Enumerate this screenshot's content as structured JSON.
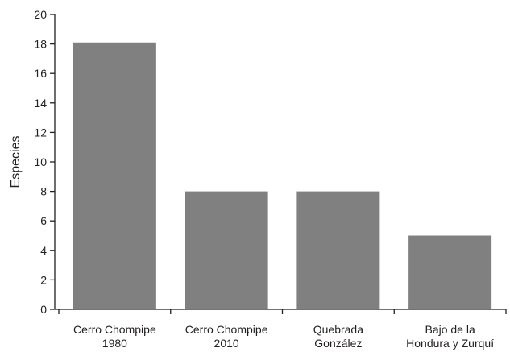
{
  "chart_data": {
    "type": "bar",
    "title": "",
    "xlabel": "",
    "ylabel": "Especies",
    "ylim": [
      0,
      20
    ],
    "yticks": [
      0,
      2,
      4,
      6,
      8,
      10,
      12,
      14,
      16,
      18,
      20
    ],
    "categories": [
      [
        "Cerro Chompipe",
        "1980"
      ],
      [
        "Cerro Chompipe",
        "2010"
      ],
      [
        "Quebrada",
        "González"
      ],
      [
        "Bajo de la",
        "Hondura y Zurquí"
      ]
    ],
    "values": [
      18.1,
      8,
      8,
      5
    ],
    "grid": false,
    "legend": "none",
    "colors": {
      "bar": "#808080",
      "axis": "#231f20",
      "text": "#231f20"
    }
  }
}
